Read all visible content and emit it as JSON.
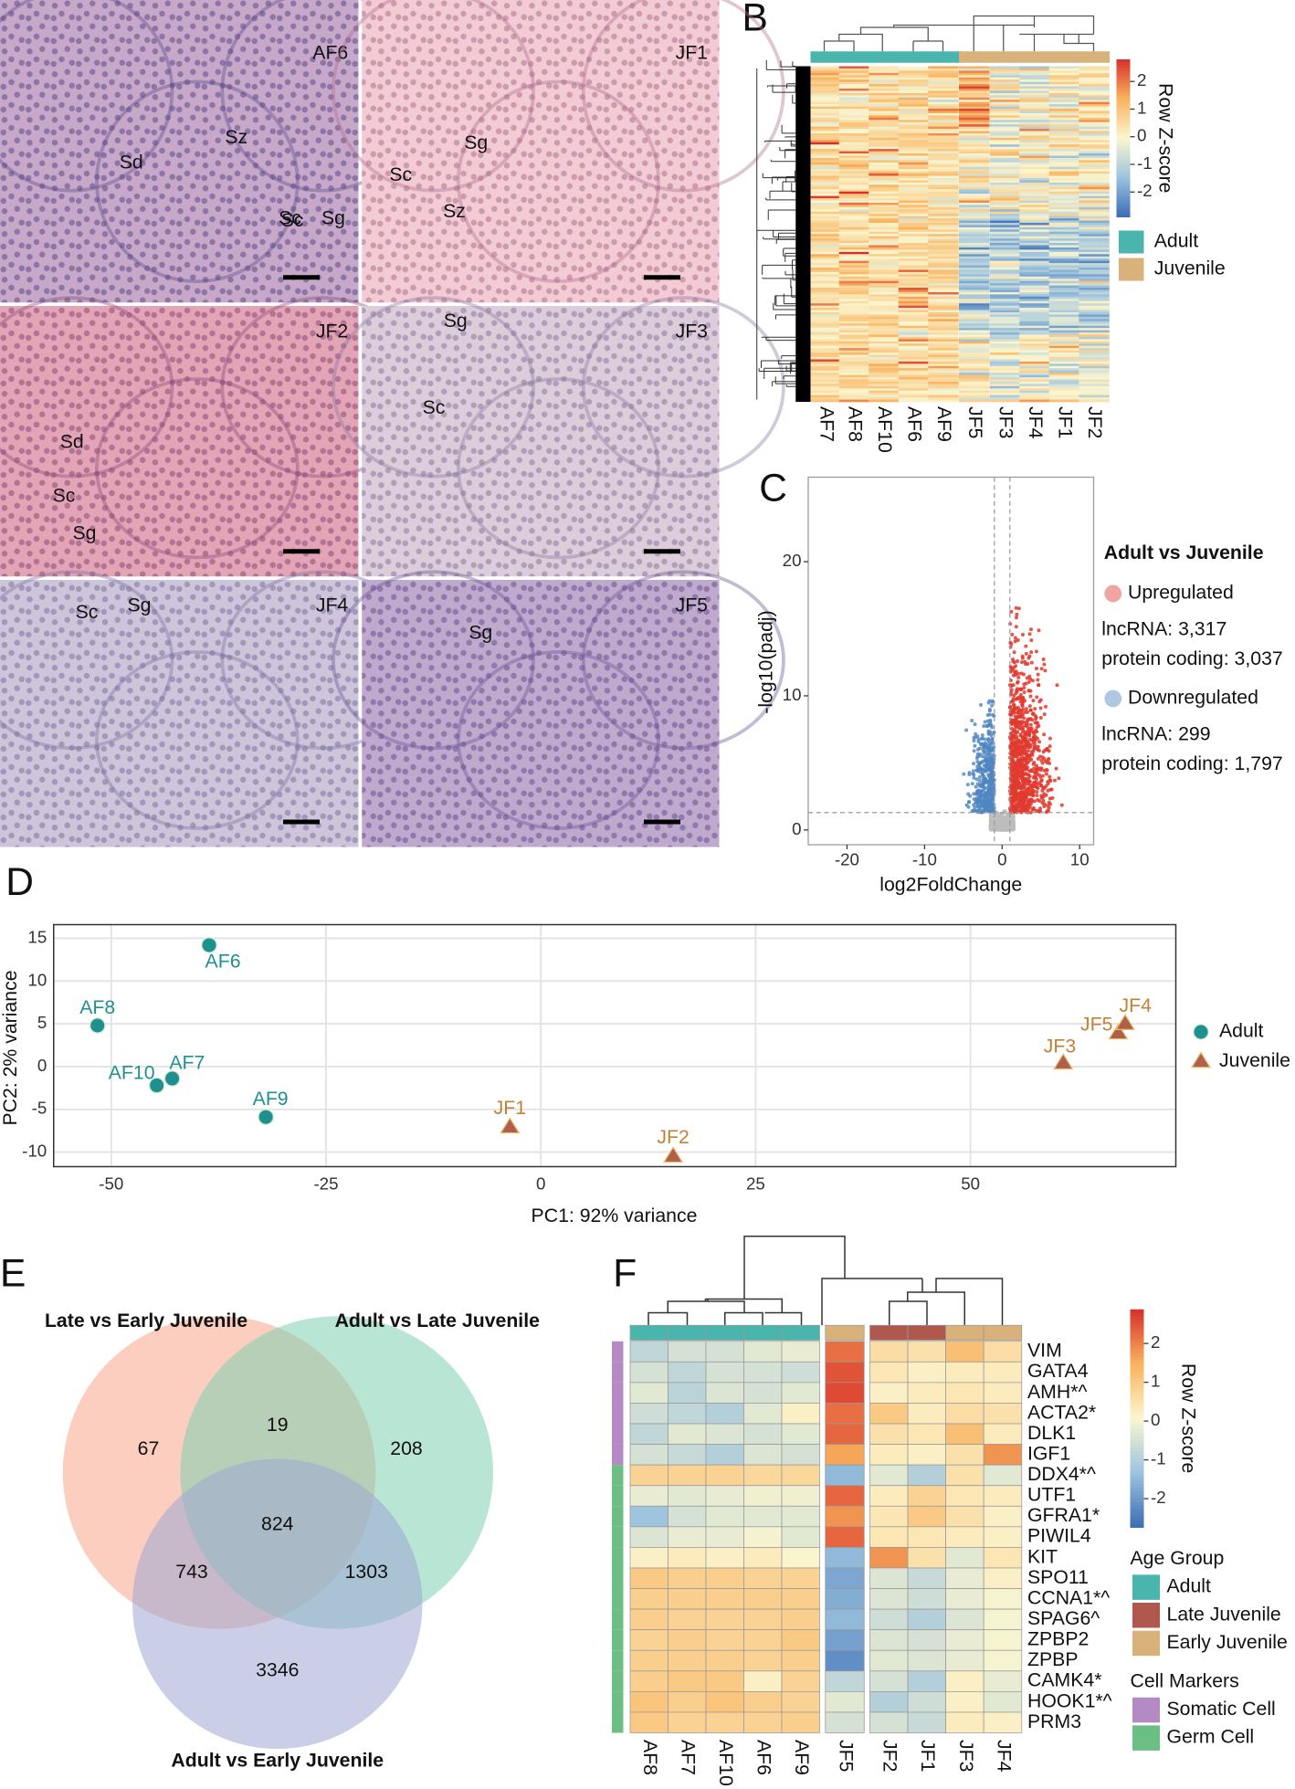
{
  "panel_labels": [
    "A",
    "B",
    "C",
    "D",
    "E",
    "F"
  ],
  "histology": [
    {
      "name": "AF6",
      "labels": [
        "Sd",
        "Sz",
        "Sc",
        "Sc",
        "Sg"
      ]
    },
    {
      "name": "JF1",
      "labels": [
        "Sg",
        "Sc",
        "Sz"
      ]
    },
    {
      "name": "JF2",
      "labels": [
        "Sd",
        "Sc",
        "Sg"
      ]
    },
    {
      "name": "JF3",
      "labels": [
        "Sg",
        "Sc"
      ]
    },
    {
      "name": "JF4",
      "labels": [
        "Sc",
        "Sg"
      ]
    },
    {
      "name": "JF5",
      "labels": [
        "Sg"
      ]
    }
  ],
  "heatmap_B": {
    "legend_title": "Row Z-score",
    "scale_ticks": [
      2,
      1,
      0,
      -1,
      -2
    ],
    "color_range": [
      -2.9,
      2.8
    ],
    "colors": [
      "#3b6db3",
      "#9dc3de",
      "#fbf6cf",
      "#f9b25e",
      "#d7302a"
    ],
    "groups": [
      {
        "name": "Adult",
        "color": "#4ab5ac"
      },
      {
        "name": "Juvenile",
        "color": "#d8b27a"
      }
    ],
    "samples": [
      "AF7",
      "AF8",
      "AF10",
      "AF6",
      "AF9",
      "JF5",
      "JF3",
      "JF4",
      "JF1",
      "JF2"
    ]
  },
  "chart_data": [
    {
      "type": "volcano",
      "title": "Adult vs Juvenile",
      "xlabel": "log2FoldChange",
      "ylabel": "-log10(padj)",
      "xlim": [
        -25,
        11.8
      ],
      "ylim": [
        -1.1,
        26.3
      ],
      "xticks": [
        -20,
        -10,
        0,
        10
      ],
      "yticks": [
        0,
        10,
        20
      ],
      "thresholds": {
        "x": [
          -1,
          1
        ],
        "y": 1.3
      },
      "legend": [
        {
          "name": "Upregulated",
          "color": "#e03a2e",
          "notes": [
            "lncRNA: 3,317",
            "protein coding: 3,037"
          ]
        },
        {
          "name": "Downregulated",
          "color": "#4f86c0",
          "notes": [
            "lncRNA: 299",
            "protein coding: 1,797"
          ]
        }
      ]
    },
    {
      "type": "scatter",
      "xlabel": "PC1: 92% variance",
      "ylabel": "PC2: 2% variance",
      "xlim": [
        -56.7,
        73.9
      ],
      "ylim": [
        -11.7,
        16.6
      ],
      "xticks": [
        -50,
        -25,
        0,
        25,
        50
      ],
      "yticks": [
        -10,
        -5,
        0,
        5,
        10,
        15
      ],
      "grid": true,
      "legend": "right",
      "series": [
        {
          "name": "Adult",
          "color": "#1f9090",
          "marker": "circle",
          "labels": [
            "AF6",
            "AF8",
            "AF10",
            "AF7",
            "AF9"
          ],
          "x": [
            -38.6,
            -51.6,
            -44.7,
            -42.9,
            -32.0
          ],
          "values": [
            14.2,
            4.8,
            -2.2,
            -1.4,
            -5.9
          ]
        },
        {
          "name": "Juvenile",
          "color": "#b0604a",
          "label_color": "#c0813a",
          "marker": "triangle",
          "labels": [
            "JF1",
            "JF2",
            "JF3",
            "JF5",
            "JF4"
          ],
          "x": [
            -3.6,
            15.4,
            60.8,
            67.2,
            68.0
          ],
          "values": [
            -7.1,
            -10.5,
            0.4,
            3.9,
            5.0
          ]
        }
      ]
    },
    {
      "type": "venn",
      "sets": [
        {
          "name": "Late vs Early Juvenile",
          "color": "#f7a68a"
        },
        {
          "name": "Adult vs Late Juvenile",
          "color": "#7fcfb0"
        },
        {
          "name": "Adult vs Early Juvenile",
          "color": "#9ea8d4"
        }
      ],
      "regions": [
        {
          "sets": [
            0
          ],
          "value": 67
        },
        {
          "sets": [
            0,
            1
          ],
          "value": 19
        },
        {
          "sets": [
            1
          ],
          "value": 208
        },
        {
          "sets": [
            0,
            1,
            2
          ],
          "value": 824
        },
        {
          "sets": [
            0,
            2
          ],
          "value": 743
        },
        {
          "sets": [
            1,
            2
          ],
          "value": 1303
        },
        {
          "sets": [
            2
          ],
          "value": 3346
        }
      ]
    },
    {
      "type": "heatmap",
      "legend_title": "Row Z-score",
      "scale_ticks": [
        2,
        1,
        0,
        -1,
        -2
      ],
      "color_range": [
        -2.74,
        2.88
      ],
      "colors": [
        "#3b6db3",
        "#9dc3de",
        "#fbf6cf",
        "#f9b25e",
        "#d7302a"
      ],
      "samples": [
        "AF8",
        "AF7",
        "AF10",
        "AF6",
        "AF9",
        "JF5",
        "JF2",
        "JF1",
        "JF3",
        "JF4"
      ],
      "sample_groups": [
        "Adult",
        "Adult",
        "Adult",
        "Adult",
        "Adult",
        "Early Juvenile",
        "Late Juvenile",
        "Late Juvenile",
        "Early Juvenile",
        "Early Juvenile"
      ],
      "genes": [
        "VIM",
        "GATA4",
        "AMH*^",
        "ACTA2*",
        "DLK1",
        "IGF1",
        "DDX4*^",
        "UTF1",
        "GFRA1*",
        "PIWIL4",
        "KIT",
        "SPO11",
        "CCNA1*^",
        "SPAG6^",
        "ZPBP2",
        "ZPBP",
        "CAMK4*",
        "HOOK1*^",
        "PRM3"
      ],
      "gene_markers": [
        "Somatic Cell",
        "Somatic Cell",
        "Somatic Cell",
        "Somatic Cell",
        "Somatic Cell",
        "Somatic Cell",
        "Germ Cell",
        "Germ Cell",
        "Germ Cell",
        "Germ Cell",
        "Germ Cell",
        "Germ Cell",
        "Germ Cell",
        "Germ Cell",
        "Germ Cell",
        "Germ Cell",
        "Germ Cell",
        "Germ Cell",
        "Germ Cell"
      ],
      "values": [
        [
          -0.8,
          -0.5,
          -0.5,
          -0.3,
          -0.2,
          2.2,
          0.6,
          0.5,
          1.2,
          0.6
        ],
        [
          -0.5,
          -0.8,
          -0.5,
          -0.5,
          -0.6,
          2.5,
          0.4,
          0.2,
          0.3,
          0.3
        ],
        [
          -0.3,
          -0.9,
          -0.4,
          -0.5,
          -0.3,
          2.6,
          0.2,
          0.3,
          0.4,
          0.3
        ],
        [
          -0.6,
          -0.8,
          -1.0,
          -0.3,
          0.2,
          2.2,
          1.0,
          0.3,
          0.6,
          0.5
        ],
        [
          -0.8,
          -0.3,
          -0.4,
          -0.5,
          -0.3,
          2.3,
          0.5,
          0.4,
          1.2,
          0.3
        ],
        [
          -0.5,
          -0.7,
          -1.0,
          -0.4,
          -0.5,
          1.6,
          0.3,
          0.2,
          0.5,
          1.8
        ],
        [
          0.8,
          0.8,
          0.8,
          0.7,
          0.7,
          -1.5,
          -0.3,
          -1.0,
          0.5,
          -0.3
        ],
        [
          -0.2,
          -0.3,
          -0.2,
          -0.1,
          -0.1,
          2.3,
          0.3,
          0.8,
          0.4,
          0.3
        ],
        [
          -1.3,
          -0.5,
          -0.3,
          -0.3,
          -0.3,
          1.8,
          0.4,
          1.0,
          0.5,
          0.2
        ],
        [
          -0.4,
          -0.2,
          -0.2,
          0,
          -0.3,
          2.3,
          0.4,
          0.4,
          0.3,
          0.2
        ],
        [
          0.2,
          0.3,
          0.2,
          0.3,
          0.1,
          -1.5,
          1.8,
          0.5,
          -0.3,
          0.4
        ],
        [
          1.0,
          0.9,
          0.9,
          0.8,
          0.8,
          -1.8,
          -0.4,
          -0.7,
          -0.2,
          0.2
        ],
        [
          0.9,
          0.9,
          0.9,
          0.9,
          0.9,
          -1.7,
          -0.4,
          -0.6,
          -0.2,
          0
        ],
        [
          0.9,
          0.8,
          0.8,
          0.8,
          0.9,
          -1.5,
          -0.6,
          -1.0,
          -0.4,
          0
        ],
        [
          0.8,
          0.9,
          0.8,
          0.8,
          1.0,
          -1.9,
          -0.4,
          -0.5,
          -0.2,
          0
        ],
        [
          0.9,
          0.9,
          0.9,
          0.8,
          0.9,
          -2.2,
          -0.3,
          -0.4,
          -0.2,
          0
        ],
        [
          0.9,
          1.0,
          1.0,
          0.2,
          0.8,
          -0.8,
          -0.5,
          -1.0,
          0.2,
          -0.2
        ],
        [
          1.1,
          0.9,
          1.1,
          0.9,
          0.8,
          -0.3,
          -1.0,
          -0.6,
          0.2,
          -0.3
        ],
        [
          1.0,
          0.8,
          0.8,
          0.8,
          0.9,
          -0.5,
          -0.5,
          -0.7,
          0.3,
          0.2
        ]
      ],
      "group_legends": [
        {
          "title": "Age Group",
          "items": [
            {
              "name": "Adult",
              "color": "#4ab5ac"
            },
            {
              "name": "Late Juvenile",
              "color": "#b0584e"
            },
            {
              "name": "Early Juvenile",
              "color": "#d8b27a"
            }
          ]
        },
        {
          "title": "Cell Markers",
          "items": [
            {
              "name": "Somatic Cell",
              "color": "#b48ac4"
            },
            {
              "name": "Germ Cell",
              "color": "#6cbf84"
            }
          ]
        }
      ]
    }
  ]
}
